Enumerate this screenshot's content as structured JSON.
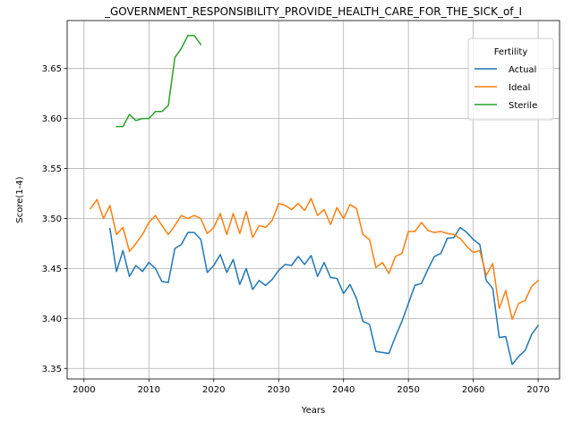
{
  "chart_data": {
    "type": "line",
    "title": "_GOVERNMENT_RESPONSIBILITY_PROVIDE_HEALTH_CARE_FOR_THE_SICK_of_I",
    "xlabel": "Years",
    "ylabel": "Score(1-4)",
    "xlim": [
      1997.4,
      2073.3
    ],
    "ylim": [
      3.3395,
      3.698
    ],
    "xticks": [
      2000,
      2010,
      2020,
      2030,
      2040,
      2050,
      2060,
      2070
    ],
    "yticks": [
      3.35,
      3.4,
      3.45,
      3.5,
      3.55,
      3.6,
      3.65
    ],
    "grid": true,
    "legend": {
      "title": "Fertility",
      "placement": "top-right"
    },
    "series": [
      {
        "name": "Actual",
        "color": "#1f77b4",
        "x": [
          2004,
          2005,
          2006,
          2007,
          2008,
          2009,
          2010,
          2011,
          2012,
          2013,
          2014,
          2015,
          2016,
          2017,
          2018,
          2019,
          2020,
          2021,
          2022,
          2023,
          2024,
          2025,
          2026,
          2027,
          2028,
          2029,
          2030,
          2031,
          2032,
          2033,
          2034,
          2035,
          2036,
          2037,
          2038,
          2039,
          2040,
          2041,
          2042,
          2043,
          2044,
          2045,
          2046,
          2047,
          2048,
          2049,
          2050,
          2051,
          2052,
          2053,
          2054,
          2055,
          2056,
          2057,
          2058,
          2059,
          2060,
          2061,
          2062,
          2063,
          2064,
          2065,
          2066,
          2067,
          2068,
          2069,
          2070
        ],
        "values": [
          3.49,
          3.447,
          3.468,
          3.442,
          3.453,
          3.447,
          3.456,
          3.45,
          3.437,
          3.436,
          3.47,
          3.474,
          3.486,
          3.486,
          3.479,
          3.446,
          3.453,
          3.464,
          3.446,
          3.459,
          3.434,
          3.45,
          3.429,
          3.438,
          3.433,
          3.439,
          3.448,
          3.454,
          3.453,
          3.462,
          3.454,
          3.463,
          3.442,
          3.456,
          3.441,
          3.44,
          3.425,
          3.434,
          3.42,
          3.397,
          3.394,
          3.367,
          3.366,
          3.365,
          3.382,
          3.397,
          3.415,
          3.433,
          3.435,
          3.449,
          3.462,
          3.465,
          3.48,
          3.481,
          3.491,
          3.486,
          3.479,
          3.474,
          3.438,
          3.43,
          3.381,
          3.382,
          3.354,
          3.362,
          3.368,
          3.384,
          3.393
        ]
      },
      {
        "name": "Ideal",
        "color": "#ff7f0e",
        "x": [
          2001,
          2002,
          2003,
          2004,
          2005,
          2006,
          2007,
          2008,
          2009,
          2010,
          2011,
          2012,
          2013,
          2014,
          2015,
          2016,
          2017,
          2018,
          2019,
          2020,
          2021,
          2022,
          2023,
          2024,
          2025,
          2026,
          2027,
          2028,
          2029,
          2030,
          2031,
          2032,
          2033,
          2034,
          2035,
          2036,
          2037,
          2038,
          2039,
          2040,
          2041,
          2042,
          2043,
          2044,
          2045,
          2046,
          2047,
          2048,
          2049,
          2050,
          2051,
          2052,
          2053,
          2054,
          2055,
          2056,
          2057,
          2058,
          2059,
          2060,
          2061,
          2062,
          2063,
          2064,
          2065,
          2066,
          2067,
          2068,
          2069,
          2070
        ],
        "values": [
          3.51,
          3.519,
          3.5,
          3.513,
          3.484,
          3.491,
          3.467,
          3.475,
          3.484,
          3.496,
          3.503,
          3.493,
          3.484,
          3.493,
          3.503,
          3.5,
          3.503,
          3.5,
          3.485,
          3.491,
          3.505,
          3.484,
          3.505,
          3.485,
          3.507,
          3.481,
          3.493,
          3.491,
          3.498,
          3.515,
          3.513,
          3.509,
          3.515,
          3.508,
          3.52,
          3.503,
          3.509,
          3.494,
          3.511,
          3.5,
          3.514,
          3.51,
          3.484,
          3.479,
          3.451,
          3.456,
          3.445,
          3.462,
          3.465,
          3.487,
          3.487,
          3.496,
          3.488,
          3.486,
          3.487,
          3.485,
          3.484,
          3.48,
          3.472,
          3.466,
          3.468,
          3.443,
          3.455,
          3.41,
          3.428,
          3.399,
          3.415,
          3.418,
          3.432,
          3.438
        ]
      },
      {
        "name": "Sterile",
        "color": "#2ca02c",
        "x": [
          2005,
          2006,
          2007,
          2008,
          2009,
          2010,
          2011,
          2012,
          2013,
          2014,
          2015,
          2016,
          2017,
          2018
        ],
        "values": [
          3.592,
          3.592,
          3.604,
          3.598,
          3.6,
          3.6,
          3.607,
          3.607,
          3.613,
          3.661,
          3.67,
          3.683,
          3.683,
          3.674
        ]
      }
    ]
  }
}
